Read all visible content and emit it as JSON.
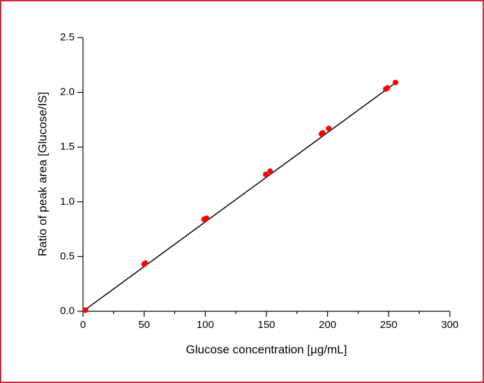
{
  "chart_data": {
    "type": "scatter",
    "xlabel": "Glucose concentration [µg/mL]",
    "ylabel": "Ratio of peak area [Glucose/IS]",
    "series": [
      {
        "color": "#ff0000",
        "x": [
          2,
          50,
          51,
          99,
          101,
          149.5,
          153,
          195,
          196,
          201,
          247.6,
          249,
          255.6
        ],
        "values": [
          0.01,
          0.43,
          0.44,
          0.84,
          0.85,
          1.25,
          1.28,
          1.62,
          1.63,
          1.67,
          2.03,
          2.04,
          2.09
        ]
      }
    ],
    "fit_line": {
      "color": "#000000",
      "x": [
        0,
        256
      ],
      "values": [
        0,
        2.09
      ]
    },
    "xlim": [
      0,
      300
    ],
    "xticks": [
      0,
      50,
      100,
      150,
      200,
      250,
      300
    ],
    "xminorticks": [
      25,
      75,
      125,
      175,
      225,
      275
    ],
    "ylim": [
      0,
      2.5
    ],
    "yticks": [
      {
        "value": 0,
        "label": "0.0"
      },
      0.5,
      {
        "value": 1,
        "label": "1.0"
      },
      1.5,
      {
        "value": 2,
        "label": "2.0"
      },
      2.5
    ]
  }
}
